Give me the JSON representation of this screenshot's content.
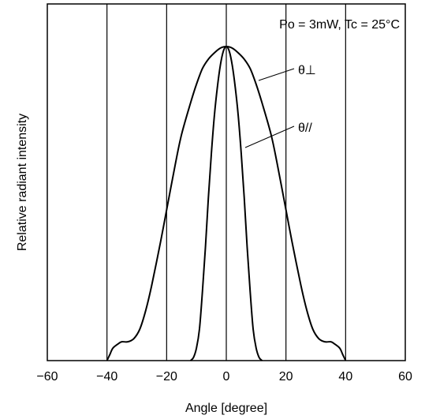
{
  "chart_data": {
    "type": "line",
    "title": "",
    "annotation": "Po = 3mW, Tc = 25°C",
    "xlabel": "Angle [degree]",
    "ylabel": "Relative radiant intensity",
    "xlim": [
      -60,
      60
    ],
    "ylim": [
      0,
      1.05
    ],
    "x_ticks": [
      -60,
      -40,
      -20,
      0,
      20,
      40,
      60
    ],
    "x_tick_labels": [
      "−60",
      "−40",
      "−20",
      "0",
      "20",
      "40",
      "60"
    ],
    "y_ticks_labeled": false,
    "grid": "vertical",
    "series": [
      {
        "name": "θ⊥",
        "x": [
          -40,
          -39,
          -38,
          -36,
          -35,
          -33,
          -31,
          -29,
          -27,
          -25,
          -22,
          -20,
          -17,
          -15,
          -12,
          -10,
          -8,
          -6,
          -4,
          -2,
          0,
          2,
          4,
          6,
          8,
          10,
          12,
          15,
          17,
          20,
          22,
          25,
          27,
          29,
          31,
          33,
          35,
          36,
          38,
          39,
          40
        ],
        "y": [
          0.0,
          0.02,
          0.04,
          0.055,
          0.06,
          0.06,
          0.07,
          0.1,
          0.16,
          0.24,
          0.38,
          0.48,
          0.63,
          0.72,
          0.82,
          0.88,
          0.93,
          0.96,
          0.98,
          0.995,
          1.0,
          0.995,
          0.98,
          0.96,
          0.93,
          0.88,
          0.82,
          0.72,
          0.63,
          0.48,
          0.38,
          0.24,
          0.16,
          0.1,
          0.07,
          0.06,
          0.06,
          0.055,
          0.04,
          0.02,
          0.0
        ]
      },
      {
        "name": "θ//",
        "x": [
          -12,
          -11,
          -10,
          -9,
          -8,
          -7,
          -6,
          -5,
          -4,
          -3,
          -2,
          -1,
          0,
          1,
          2,
          3,
          4,
          5,
          6,
          7,
          8,
          9,
          10,
          11,
          12
        ],
        "y": [
          0.0,
          0.01,
          0.04,
          0.1,
          0.22,
          0.36,
          0.52,
          0.66,
          0.78,
          0.87,
          0.94,
          0.985,
          1.0,
          0.985,
          0.94,
          0.87,
          0.78,
          0.66,
          0.52,
          0.36,
          0.22,
          0.1,
          0.04,
          0.01,
          0.0
        ]
      }
    ]
  }
}
